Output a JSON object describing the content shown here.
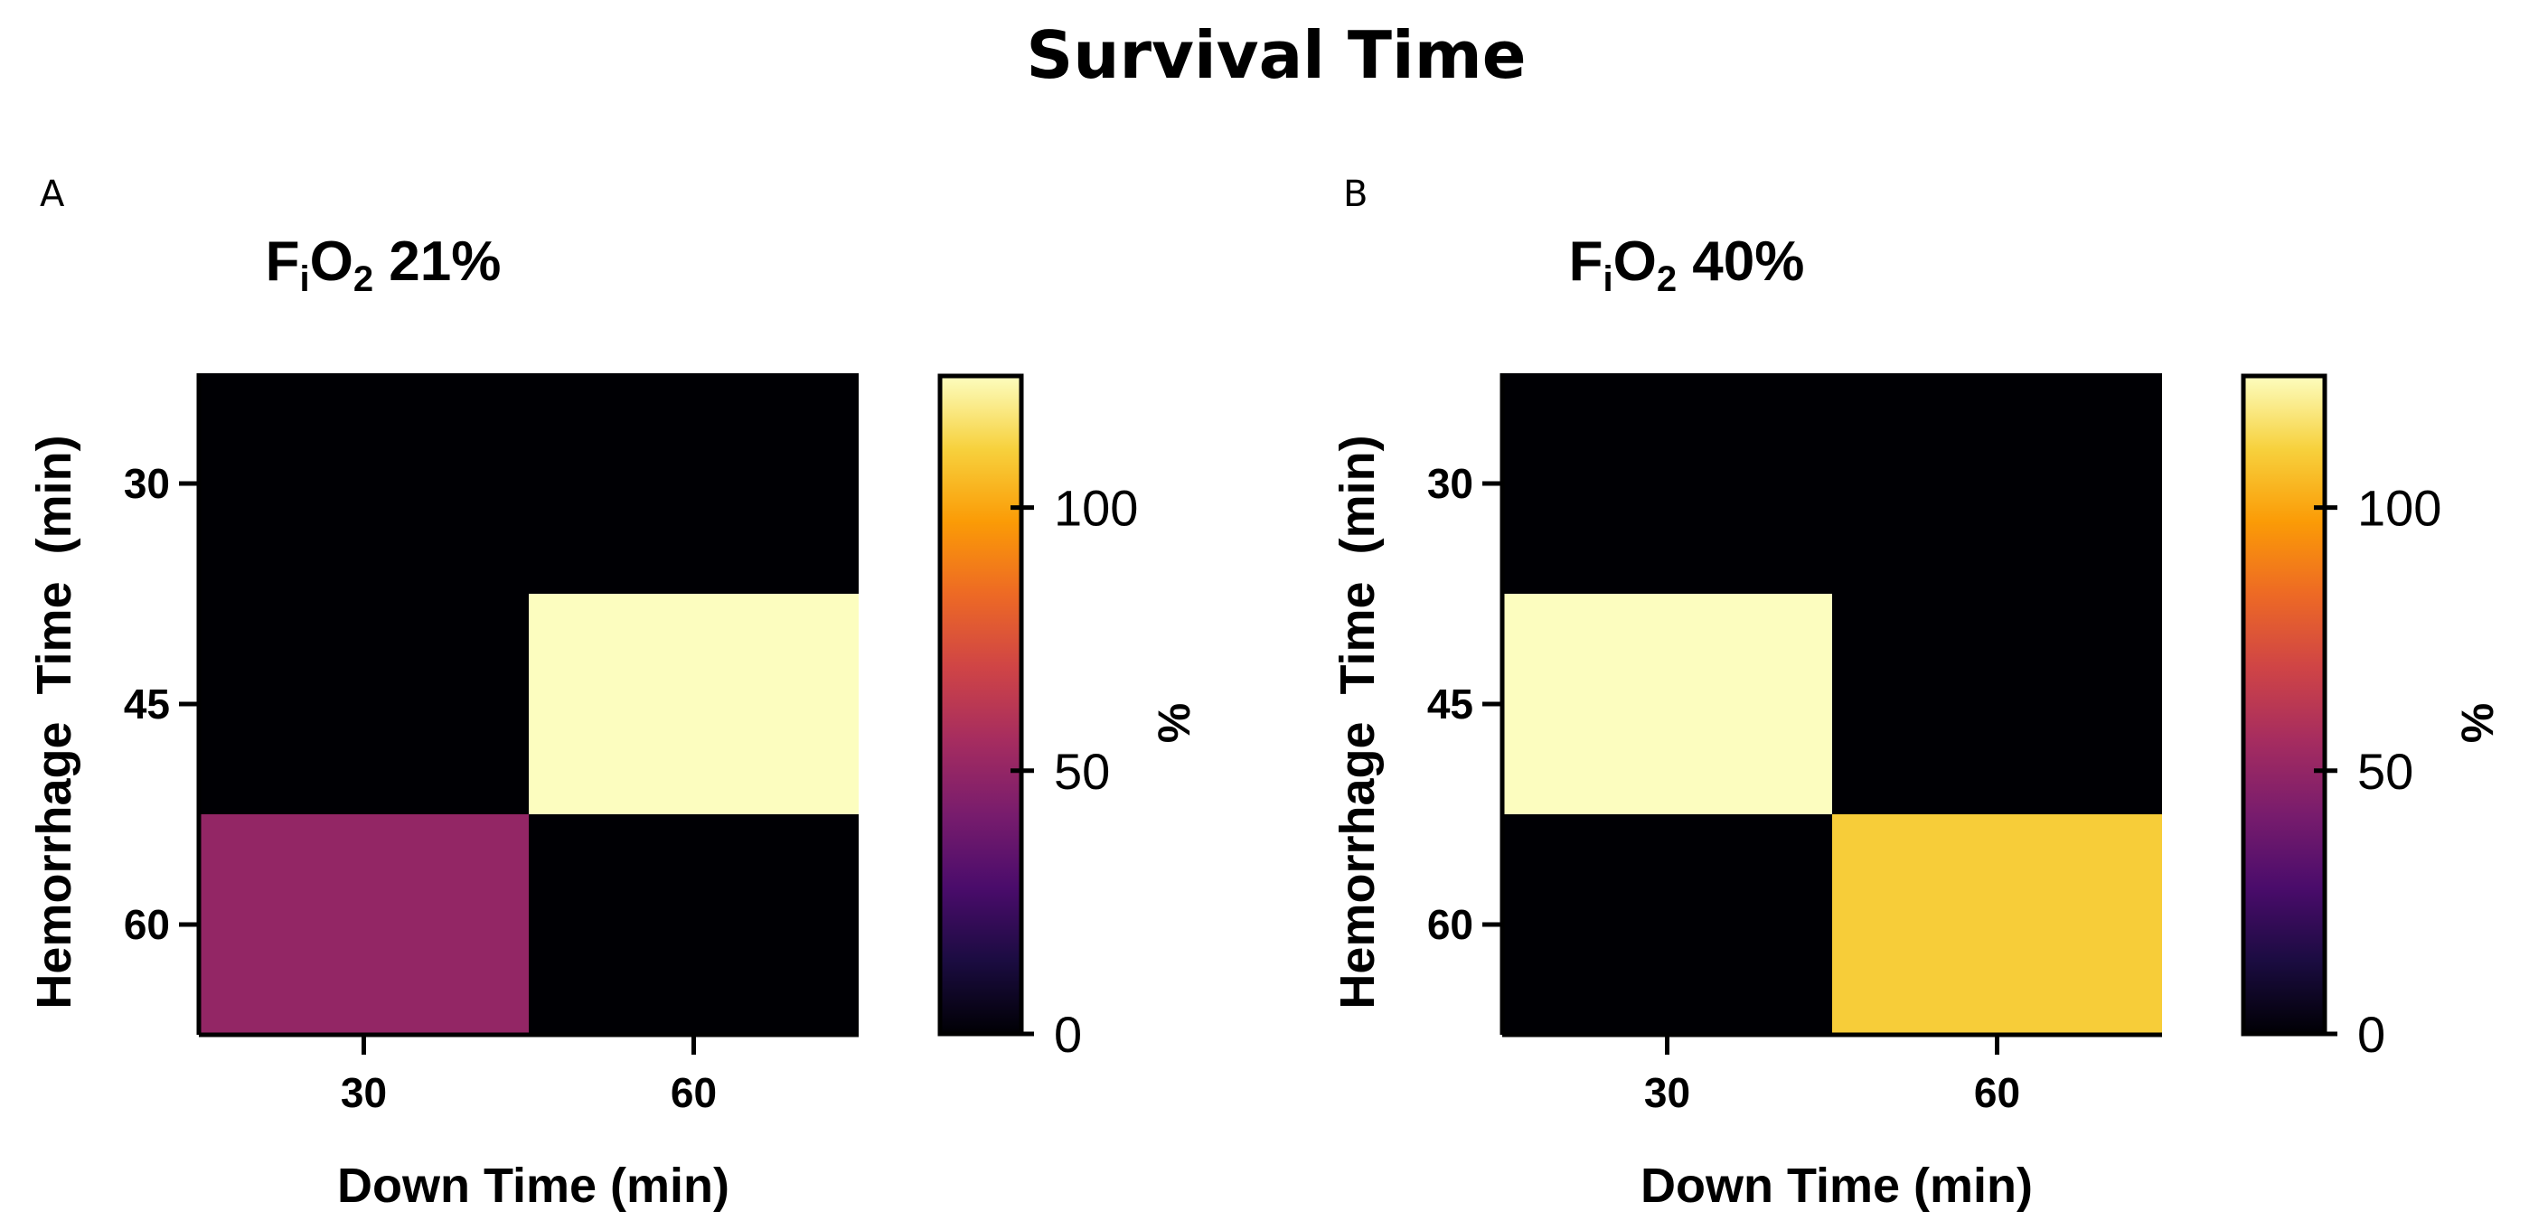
{
  "figure_title": "Survival Time",
  "colors": {
    "background": "#ffffff",
    "axis": "#000000",
    "colormap": [
      "#000004",
      "#1b0c41",
      "#4a0c6b",
      "#781c6d",
      "#a52c60",
      "#cf4446",
      "#ed6925",
      "#fb9b06",
      "#f7d13d",
      "#fcfdbf"
    ],
    "colormap_name": "magma"
  },
  "chart_data": [
    {
      "type": "heatmap",
      "panel_label": "A",
      "title": {
        "prefix": "F",
        "sub": "i",
        "mid": "O",
        "sub2": "2",
        "suffix": " 21%"
      },
      "xlabel": "Down Time (min)",
      "ylabel": "Hemorrhage  Time  (min)",
      "x_categories": [
        "30",
        "60"
      ],
      "y_categories": [
        "30",
        "45",
        "60"
      ],
      "values": [
        [
          0,
          0
        ],
        [
          0,
          125
        ],
        [
          50,
          0
        ]
      ],
      "colorbar": {
        "label": "%",
        "range": [
          0,
          125
        ],
        "ticks": [
          "0",
          "50",
          "100"
        ]
      }
    },
    {
      "type": "heatmap",
      "panel_label": "B",
      "title": {
        "prefix": "F",
        "sub": "i",
        "mid": "O",
        "sub2": "2",
        "suffix": " 40%"
      },
      "xlabel": "Down Time (min)",
      "ylabel": "Hemorrhage  Time  (min)",
      "x_categories": [
        "30",
        "60"
      ],
      "y_categories": [
        "30",
        "45",
        "60"
      ],
      "values": [
        [
          0,
          0
        ],
        [
          125,
          0
        ],
        [
          0,
          110
        ]
      ],
      "colorbar": {
        "label": "%",
        "range": [
          0,
          125
        ],
        "ticks": [
          "0",
          "50",
          "100"
        ]
      }
    }
  ]
}
